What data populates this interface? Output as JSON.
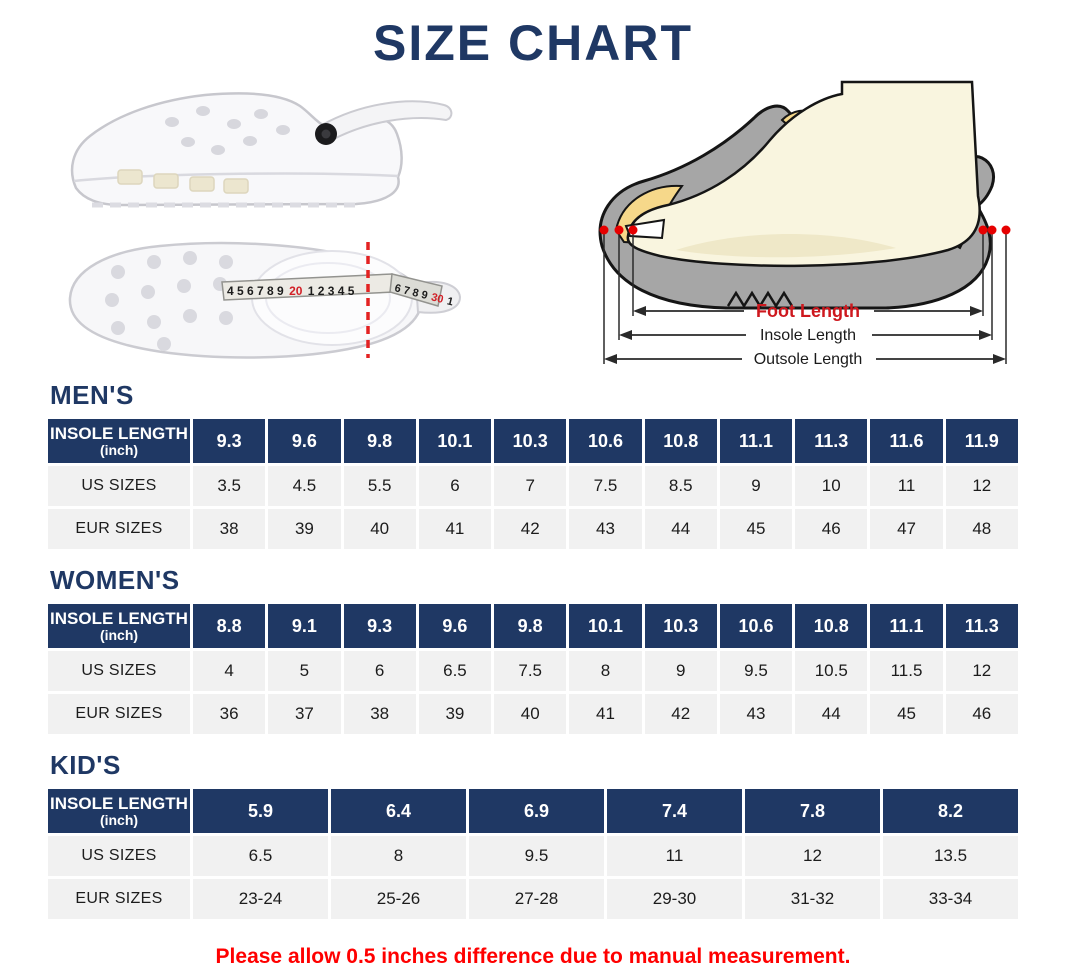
{
  "title": "SIZE CHART",
  "note": "Please allow 0.5 inches difference due to manual measurement.",
  "colors": {
    "navy": "#1F3864",
    "row_gray": "#F1F1F1",
    "note_red": "#FF0000",
    "foot_length_red": "#CE181E",
    "tape_mark_red": "#D21F26"
  },
  "diagram": {
    "foot_length_label": "Foot Length",
    "insole_length_label": "Insole Length",
    "outsole_length_label": "Outsole Length"
  },
  "tape": {
    "seg1": "4 5 6 7 8 9",
    "seg2": "20",
    "seg3": "1 2 3 4 5",
    "seg4": "6 7 8 9",
    "seg5": "30",
    "seg6": "1"
  },
  "tables": [
    {
      "section": "MEN'S",
      "header_label_line1": "INSOLE LENGTH",
      "header_label_line2": "(inch)",
      "us_label": "US SIZES",
      "eur_label": "EUR SIZES",
      "insole": [
        "9.3",
        "9.6",
        "9.8",
        "10.1",
        "10.3",
        "10.6",
        "10.8",
        "11.1",
        "11.3",
        "11.6",
        "11.9"
      ],
      "us": [
        "3.5",
        "4.5",
        "5.5",
        "6",
        "7",
        "7.5",
        "8.5",
        "9",
        "10",
        "11",
        "12"
      ],
      "eur": [
        "38",
        "39",
        "40",
        "41",
        "42",
        "43",
        "44",
        "45",
        "46",
        "47",
        "48"
      ]
    },
    {
      "section": "WOMEN'S",
      "header_label_line1": "INSOLE LENGTH",
      "header_label_line2": "(inch)",
      "us_label": "US SIZES",
      "eur_label": "EUR SIZES",
      "insole": [
        "8.8",
        "9.1",
        "9.3",
        "9.6",
        "9.8",
        "10.1",
        "10.3",
        "10.6",
        "10.8",
        "11.1",
        "11.3"
      ],
      "us": [
        "4",
        "5",
        "6",
        "6.5",
        "7.5",
        "8",
        "9",
        "9.5",
        "10.5",
        "11.5",
        "12"
      ],
      "eur": [
        "36",
        "37",
        "38",
        "39",
        "40",
        "41",
        "42",
        "43",
        "44",
        "45",
        "46"
      ]
    },
    {
      "section": "KID'S",
      "header_label_line1": "INSOLE LENGTH",
      "header_label_line2": "(inch)",
      "us_label": "US SIZES",
      "eur_label": "EUR SIZES",
      "insole": [
        "5.9",
        "6.4",
        "6.9",
        "7.4",
        "7.8",
        "8.2"
      ],
      "us": [
        "6.5",
        "8",
        "9.5",
        "11",
        "12",
        "13.5"
      ],
      "eur": [
        "23-24",
        "25-26",
        "27-28",
        "29-30",
        "31-32",
        "33-34"
      ]
    }
  ]
}
